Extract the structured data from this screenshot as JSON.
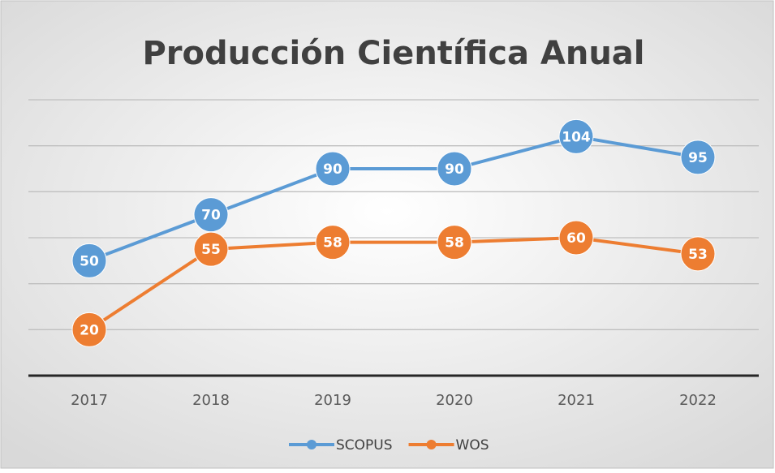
{
  "chart_data": {
    "type": "line",
    "title": "Producción Científica Anual",
    "categories": [
      "2017",
      "2018",
      "2019",
      "2020",
      "2021",
      "2022"
    ],
    "series": [
      {
        "name": "SCOPUS",
        "color": "#5b9bd5",
        "values": [
          50,
          70,
          90,
          90,
          104,
          95
        ]
      },
      {
        "name": "WOS",
        "color": "#ed7d31",
        "values": [
          20,
          55,
          58,
          58,
          60,
          53
        ]
      }
    ],
    "ylim": [
      0,
      120
    ],
    "yticks": [
      0,
      20,
      40,
      60,
      80,
      100,
      120
    ],
    "grid": true,
    "legend": "bottom"
  }
}
